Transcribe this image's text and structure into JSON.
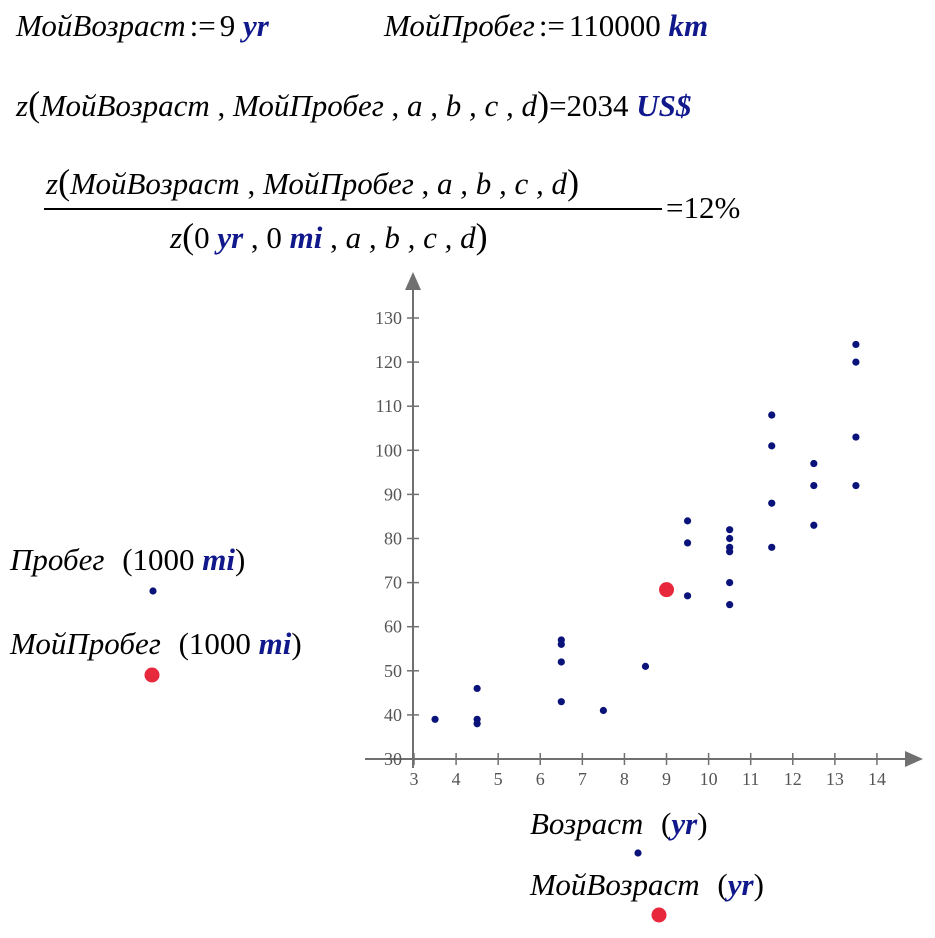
{
  "definitions": {
    "age_var": "МойВозраст",
    "age_assign": ":=",
    "age_value": "9",
    "age_unit": "yr",
    "mileage_var": "МойПробег",
    "mileage_assign": ":=",
    "mileage_value": "110000",
    "mileage_unit": "km"
  },
  "result": {
    "func": "z",
    "open": "(",
    "arg1": "МойВозраст",
    "arg2": "МойПробег",
    "args_rest": "a , b , c , d",
    "close": ")",
    "equals": "=",
    "value": "2034",
    "unit": "US$"
  },
  "ratio": {
    "numerator_func": "z",
    "numerator_open": "(",
    "numerator_arg1": "МойВозраст",
    "numerator_arg2": "МойПробег",
    "numerator_rest": "a , b , c , d",
    "numerator_close": ")",
    "den_func": "z",
    "den_open": "(",
    "den_age_value": "0",
    "den_age_unit": "yr",
    "den_mileage_value": "0",
    "den_mileage_unit": "mi",
    "den_rest": "a , b , c , d",
    "den_close": ")",
    "equals": "=",
    "value": "12%"
  },
  "legend": {
    "y_series_label": "Пробег",
    "y_series_unit_num": "1000",
    "y_series_unit": "mi",
    "y_mine_label": "МойПробег",
    "y_mine_unit_num": "1000",
    "y_mine_unit": "mi",
    "x_series_label": "Возраст",
    "x_series_unit": "yr",
    "x_mine_label": "МойВозраст",
    "x_mine_unit": "yr"
  },
  "colors": {
    "unit": "#10188c",
    "series_point": "#0a137a",
    "highlight_point": "#e8283c",
    "axis": "#707070"
  },
  "chart_data": {
    "type": "scatter",
    "xlim": [
      3,
      15
    ],
    "ylim": [
      30,
      135
    ],
    "x_ticks": [
      3,
      4,
      5,
      6,
      7,
      8,
      9,
      10,
      11,
      12,
      13,
      14
    ],
    "y_ticks": [
      30,
      40,
      50,
      60,
      70,
      80,
      90,
      100,
      110,
      120,
      130
    ],
    "grid": false,
    "series": [
      {
        "points": [
          [
            3.5,
            39
          ],
          [
            4.5,
            46
          ],
          [
            4.5,
            39
          ],
          [
            4.5,
            38
          ],
          [
            6.5,
            57
          ],
          [
            6.5,
            56
          ],
          [
            6.5,
            52
          ],
          [
            6.5,
            43
          ],
          [
            7.5,
            41
          ],
          [
            8.5,
            51
          ],
          [
            9.5,
            84
          ],
          [
            9.5,
            79
          ],
          [
            9.5,
            67
          ],
          [
            10.5,
            82
          ],
          [
            10.5,
            80
          ],
          [
            10.5,
            78
          ],
          [
            10.5,
            77
          ],
          [
            10.5,
            70
          ],
          [
            10.5,
            65
          ],
          [
            11.5,
            108
          ],
          [
            11.5,
            101
          ],
          [
            11.5,
            88
          ],
          [
            11.5,
            78
          ],
          [
            12.5,
            97
          ],
          [
            12.5,
            92
          ],
          [
            12.5,
            83
          ],
          [
            13.5,
            124
          ],
          [
            13.5,
            120
          ],
          [
            13.5,
            103
          ],
          [
            13.5,
            92
          ]
        ]
      },
      {
        "points": [
          [
            9,
            68.4
          ]
        ]
      }
    ]
  }
}
